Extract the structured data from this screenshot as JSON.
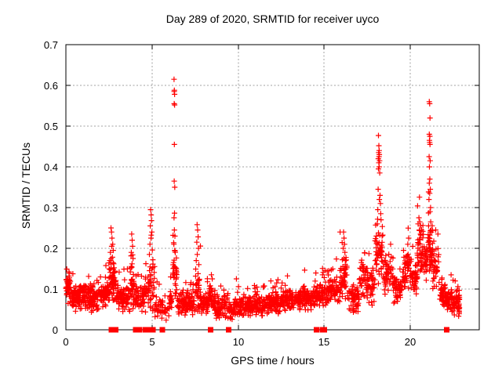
{
  "chart_data": {
    "type": "scatter",
    "title": "Day 289 of 2020, SRMTID for receiver uyco",
    "xlabel": "GPS time / hours",
    "ylabel": "SRMTID / TECUs",
    "xlim": [
      0,
      24
    ],
    "ylim": [
      0,
      0.7
    ],
    "xticks": [
      0,
      5,
      10,
      15,
      20
    ],
    "yticks": [
      0,
      0.1,
      0.2,
      0.3,
      0.4,
      0.5,
      0.6,
      0.7
    ],
    "grid": true,
    "legend": "none",
    "marker": "plus",
    "colors": {
      "points": "#ff0000",
      "grid": "#a0a0a0",
      "axis": "#000000",
      "text": "#000000",
      "background": "#ffffff"
    },
    "band_segments_format": [
      "t_start",
      "t_end",
      "n_points",
      "y_min",
      "y_max"
    ],
    "band_segments": [
      [
        0.0,
        0.3,
        40,
        0.06,
        0.145
      ],
      [
        0.3,
        1.0,
        85,
        0.045,
        0.115
      ],
      [
        1.0,
        2.0,
        115,
        0.04,
        0.115
      ],
      [
        2.0,
        2.5,
        55,
        0.05,
        0.125
      ],
      [
        2.5,
        2.95,
        55,
        0.06,
        0.185
      ],
      [
        2.95,
        3.3,
        35,
        0.045,
        0.115
      ],
      [
        3.3,
        3.75,
        45,
        0.04,
        0.12
      ],
      [
        3.75,
        4.0,
        30,
        0.05,
        0.165
      ],
      [
        4.0,
        4.6,
        55,
        0.035,
        0.12
      ],
      [
        4.6,
        5.15,
        50,
        0.04,
        0.18
      ],
      [
        5.15,
        5.55,
        25,
        0.025,
        0.09
      ],
      [
        5.55,
        6.0,
        20,
        0.02,
        0.075
      ],
      [
        6.0,
        6.2,
        18,
        0.04,
        0.11
      ],
      [
        6.2,
        6.45,
        30,
        0.05,
        0.23
      ],
      [
        6.45,
        7.0,
        50,
        0.03,
        0.1
      ],
      [
        7.0,
        7.5,
        50,
        0.03,
        0.095
      ],
      [
        7.5,
        7.85,
        40,
        0.04,
        0.155
      ],
      [
        7.85,
        8.3,
        45,
        0.03,
        0.1
      ],
      [
        8.3,
        8.65,
        35,
        0.035,
        0.12
      ],
      [
        8.65,
        9.4,
        65,
        0.025,
        0.09
      ],
      [
        9.4,
        9.7,
        25,
        0.015,
        0.075
      ],
      [
        9.7,
        10.6,
        85,
        0.03,
        0.085
      ],
      [
        10.6,
        11.6,
        95,
        0.03,
        0.09
      ],
      [
        11.6,
        12.6,
        95,
        0.035,
        0.1
      ],
      [
        12.6,
        13.6,
        95,
        0.04,
        0.105
      ],
      [
        13.6,
        14.5,
        85,
        0.045,
        0.115
      ],
      [
        14.5,
        15.2,
        65,
        0.05,
        0.125
      ],
      [
        15.2,
        15.9,
        65,
        0.055,
        0.14
      ],
      [
        15.9,
        16.35,
        45,
        0.07,
        0.19
      ],
      [
        16.35,
        17.0,
        55,
        0.035,
        0.125
      ],
      [
        17.0,
        17.4,
        35,
        0.07,
        0.16
      ],
      [
        17.4,
        17.95,
        50,
        0.055,
        0.165
      ],
      [
        17.95,
        18.45,
        55,
        0.1,
        0.27
      ],
      [
        18.45,
        19.0,
        50,
        0.08,
        0.2
      ],
      [
        19.0,
        19.55,
        45,
        0.06,
        0.135
      ],
      [
        19.55,
        20.1,
        55,
        0.09,
        0.21
      ],
      [
        20.1,
        20.4,
        30,
        0.08,
        0.17
      ],
      [
        20.4,
        20.75,
        45,
        0.12,
        0.27
      ],
      [
        20.75,
        21.0,
        28,
        0.11,
        0.22
      ],
      [
        21.0,
        21.3,
        45,
        0.12,
        0.28
      ],
      [
        21.3,
        21.65,
        35,
        0.08,
        0.21
      ],
      [
        21.65,
        22.1,
        45,
        0.05,
        0.13
      ],
      [
        22.1,
        22.45,
        40,
        0.04,
        0.11
      ],
      [
        22.45,
        22.85,
        55,
        0.03,
        0.105
      ]
    ],
    "peak_points_format": [
      "t",
      "y"
    ],
    "peak_points": [
      [
        2.55,
        0.17
      ],
      [
        2.58,
        0.19
      ],
      [
        2.62,
        0.25
      ],
      [
        2.65,
        0.24
      ],
      [
        2.66,
        0.205
      ],
      [
        2.68,
        0.225
      ],
      [
        2.7,
        0.178
      ],
      [
        2.72,
        0.21
      ],
      [
        2.75,
        0.195
      ],
      [
        2.78,
        0.162
      ],
      [
        3.78,
        0.152
      ],
      [
        3.8,
        0.19
      ],
      [
        3.82,
        0.235
      ],
      [
        3.84,
        0.162
      ],
      [
        3.85,
        0.22
      ],
      [
        3.87,
        0.205
      ],
      [
        3.9,
        0.175
      ],
      [
        4.85,
        0.185
      ],
      [
        4.88,
        0.21
      ],
      [
        4.9,
        0.255
      ],
      [
        4.92,
        0.295
      ],
      [
        4.94,
        0.225
      ],
      [
        4.95,
        0.282
      ],
      [
        4.97,
        0.268
      ],
      [
        4.99,
        0.24
      ],
      [
        5.02,
        0.196
      ],
      [
        5.05,
        0.172
      ],
      [
        6.22,
        0.135
      ],
      [
        6.25,
        0.165
      ],
      [
        6.27,
        0.21
      ],
      [
        6.28,
        0.615
      ],
      [
        6.28,
        0.275
      ],
      [
        6.29,
        0.585
      ],
      [
        6.29,
        0.555
      ],
      [
        6.29,
        0.365
      ],
      [
        6.3,
        0.588
      ],
      [
        6.3,
        0.455
      ],
      [
        6.3,
        0.245
      ],
      [
        6.31,
        0.578
      ],
      [
        6.31,
        0.552
      ],
      [
        6.32,
        0.35
      ],
      [
        6.33,
        0.23
      ],
      [
        6.35,
        0.19
      ],
      [
        6.38,
        0.152
      ],
      [
        6.4,
        0.125
      ],
      [
        7.57,
        0.17
      ],
      [
        7.6,
        0.215
      ],
      [
        7.62,
        0.258
      ],
      [
        7.63,
        0.185
      ],
      [
        7.65,
        0.245
      ],
      [
        7.68,
        0.228
      ],
      [
        7.7,
        0.2
      ],
      [
        7.72,
        0.16
      ],
      [
        8.45,
        0.135
      ],
      [
        8.5,
        0.125
      ],
      [
        9.9,
        0.125
      ],
      [
        11.9,
        0.12
      ],
      [
        12.55,
        0.115
      ],
      [
        14.9,
        0.135
      ],
      [
        15.0,
        0.128
      ],
      [
        16.08,
        0.155
      ],
      [
        16.1,
        0.2
      ],
      [
        16.12,
        0.24
      ],
      [
        16.14,
        0.175
      ],
      [
        16.15,
        0.225
      ],
      [
        16.18,
        0.21
      ],
      [
        16.2,
        0.19
      ],
      [
        16.22,
        0.16
      ],
      [
        17.15,
        0.165
      ],
      [
        17.2,
        0.155
      ],
      [
        18.08,
        0.26
      ],
      [
        18.11,
        0.295
      ],
      [
        18.13,
        0.345
      ],
      [
        18.14,
        0.42
      ],
      [
        18.15,
        0.477
      ],
      [
        18.15,
        0.395
      ],
      [
        18.16,
        0.435
      ],
      [
        18.17,
        0.452
      ],
      [
        18.17,
        0.41
      ],
      [
        18.18,
        0.425
      ],
      [
        18.19,
        0.44
      ],
      [
        18.19,
        0.4
      ],
      [
        18.2,
        0.43
      ],
      [
        18.2,
        0.32
      ],
      [
        18.21,
        0.415
      ],
      [
        18.22,
        0.385
      ],
      [
        18.24,
        0.33
      ],
      [
        18.26,
        0.31
      ],
      [
        18.28,
        0.285
      ],
      [
        18.3,
        0.27
      ],
      [
        19.85,
        0.21
      ],
      [
        19.9,
        0.225
      ],
      [
        20.45,
        0.26
      ],
      [
        20.5,
        0.275
      ],
      [
        20.52,
        0.245
      ],
      [
        20.55,
        0.265
      ],
      [
        20.6,
        0.255
      ],
      [
        21.06,
        0.255
      ],
      [
        21.08,
        0.32
      ],
      [
        21.09,
        0.425
      ],
      [
        21.1,
        0.56
      ],
      [
        21.1,
        0.48
      ],
      [
        21.1,
        0.36
      ],
      [
        21.11,
        0.465
      ],
      [
        21.11,
        0.4
      ],
      [
        21.12,
        0.555
      ],
      [
        21.12,
        0.46
      ],
      [
        21.12,
        0.335
      ],
      [
        21.13,
        0.475
      ],
      [
        21.13,
        0.37
      ],
      [
        21.14,
        0.52
      ],
      [
        21.14,
        0.455
      ],
      [
        21.14,
        0.29
      ],
      [
        21.15,
        0.415
      ],
      [
        21.16,
        0.345
      ],
      [
        21.17,
        0.3
      ],
      [
        21.18,
        0.265
      ],
      [
        21.2,
        0.245
      ],
      [
        21.22,
        0.24
      ],
      [
        22.6,
        0.12
      ]
    ],
    "zero_marker_style": "filled-square",
    "zero_marker_times": [
      2.64,
      2.9,
      4.05,
      4.25,
      4.6,
      4.72,
      4.9,
      5.05,
      5.6,
      8.4,
      9.45,
      14.55,
      14.9,
      15.0,
      22.12
    ],
    "zero_marker_value": 0
  }
}
